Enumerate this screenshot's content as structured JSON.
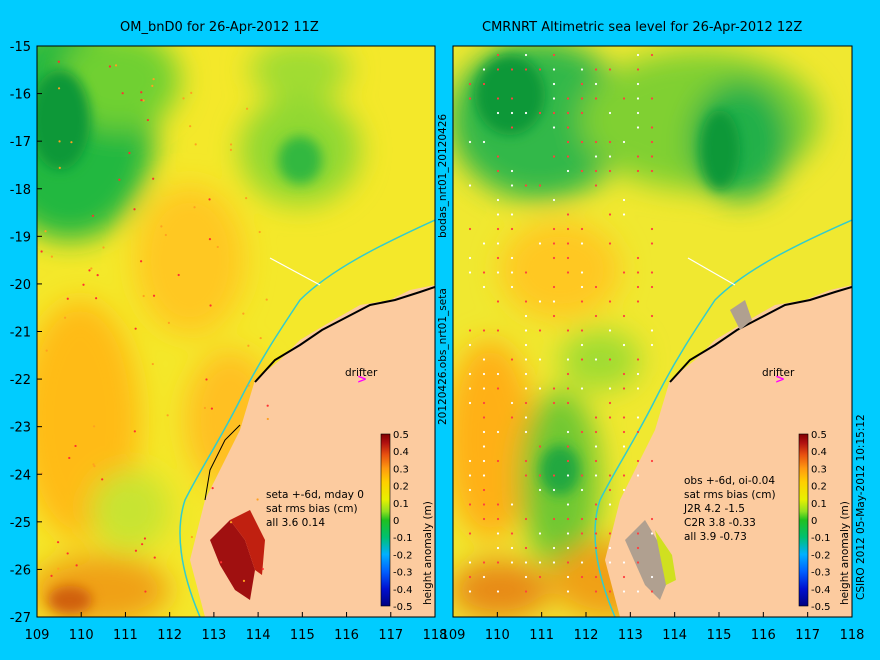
{
  "colors": {
    "background": "#00ccff",
    "land": "#fccb9f",
    "coast_line": "#000000",
    "isobath": "#33cccc",
    "drifter_marker": "#ff00ff"
  },
  "left_panel": {
    "title": "OM_bnD0 for 26-Apr-2012 11Z",
    "stats": [
      "seta +-6d, mday 0",
      "sat rms bias (cm)",
      "all 3.6 0.14"
    ],
    "drifter_label": "drifter"
  },
  "right_panel": {
    "title": "CMRNRT Altimetric sea level  for 26-Apr-2012 12Z",
    "stats": [
      "obs +-6d, oi-0.04",
      "sat rms bias (cm)",
      "J2R   4.2 -1.5",
      "C2R   3.8 -0.33",
      "all 3.9 -0.73"
    ],
    "drifter_label": "drifter"
  },
  "axes": {
    "y_ticks": [
      "-15",
      "-16",
      "-17",
      "-18",
      "-19",
      "-20",
      "-21",
      "-22",
      "-23",
      "-24",
      "-25",
      "-26",
      "-27"
    ],
    "x_ticks": [
      "109",
      "110",
      "111",
      "112",
      "113",
      "114",
      "115",
      "116",
      "117",
      "118"
    ]
  },
  "colorbar": {
    "label": "height anomaly (m)",
    "ticks": [
      "0.5",
      "0.4",
      "0.3",
      "0.2",
      "0.1",
      "0",
      "-0.1",
      "-0.2",
      "-0.3",
      "-0.4",
      "-0.5"
    ]
  },
  "side_labels": {
    "mid_top": "bodas_nrt01_20120426",
    "mid_bottom": "20120426.obs_nrt01_seta",
    "right": "CSIRO 2012   05-May-2012 10:15:12"
  }
}
